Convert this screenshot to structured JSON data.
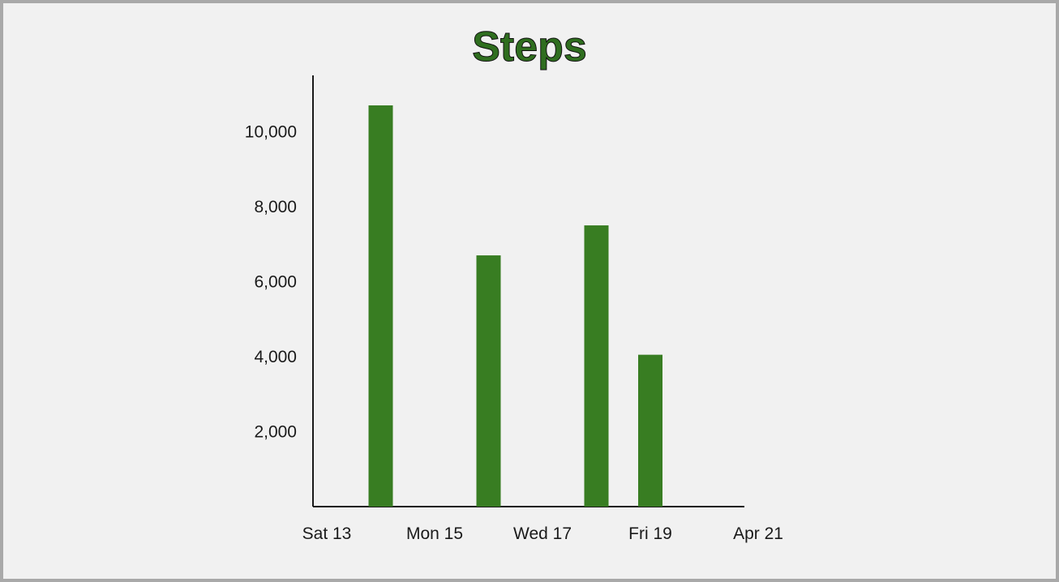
{
  "chart_data": {
    "type": "bar",
    "title": "Steps",
    "xlabel": "",
    "ylabel": "",
    "x_tick_labels": [
      "Sat 13",
      "Mon 15",
      "Wed 17",
      "Fri 19",
      "Apr 21"
    ],
    "y_tick_labels": [
      "2,000",
      "4,000",
      "6,000",
      "8,000",
      "10,000"
    ],
    "y_ticks": [
      2000,
      4000,
      6000,
      8000,
      10000
    ],
    "ylim": [
      0,
      11500
    ],
    "xlim": [
      "2024-04-13",
      "2024-04-21"
    ],
    "grid": false,
    "bar_color": "#387d22",
    "series": [
      {
        "x": [
          "2024-04-14",
          "2024-04-16",
          "2024-04-18",
          "2024-04-19"
        ],
        "values": [
          10700,
          6700,
          7500,
          4050
        ]
      }
    ]
  }
}
